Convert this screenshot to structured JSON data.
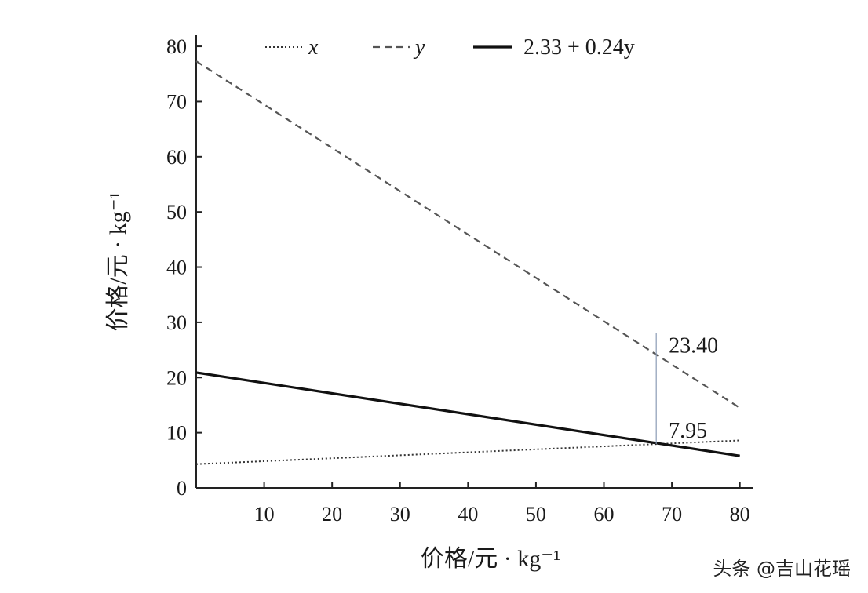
{
  "chart_data": {
    "type": "line",
    "xlabel": "价格/元 · kg⁻¹",
    "ylabel": "价格/元 · kg⁻¹",
    "xlim": [
      0,
      82
    ],
    "ylim": [
      0,
      82
    ],
    "x_ticks": [
      10,
      20,
      30,
      40,
      50,
      60,
      70,
      80
    ],
    "y_ticks": [
      0,
      10,
      20,
      30,
      40,
      50,
      60,
      70,
      80
    ],
    "grid": false,
    "legend_position": "top",
    "series": [
      {
        "name": "x",
        "style": "dotted",
        "color": "#333333",
        "x": [
          0,
          80
        ],
        "y": [
          4.3,
          8.6
        ]
      },
      {
        "name": "y",
        "style": "dashed",
        "color": "#555555",
        "x": [
          0,
          80
        ],
        "y": [
          77.3,
          14.5
        ]
      },
      {
        "name": "2.33 + 0.24y",
        "style": "solid",
        "color": "#111111",
        "x": [
          0,
          80
        ],
        "y": [
          20.9,
          5.8
        ]
      }
    ],
    "annotations": [
      {
        "text": "23.40",
        "x": 67.7,
        "y": 23.4
      },
      {
        "text": "7.95",
        "x": 67.7,
        "y": 7.95
      }
    ],
    "marker_line": {
      "x": 67.7,
      "y_from": 7.95,
      "y_to": 28.0,
      "color": "#8a9bb5"
    }
  },
  "watermark": "头条 @吉山花瑶"
}
